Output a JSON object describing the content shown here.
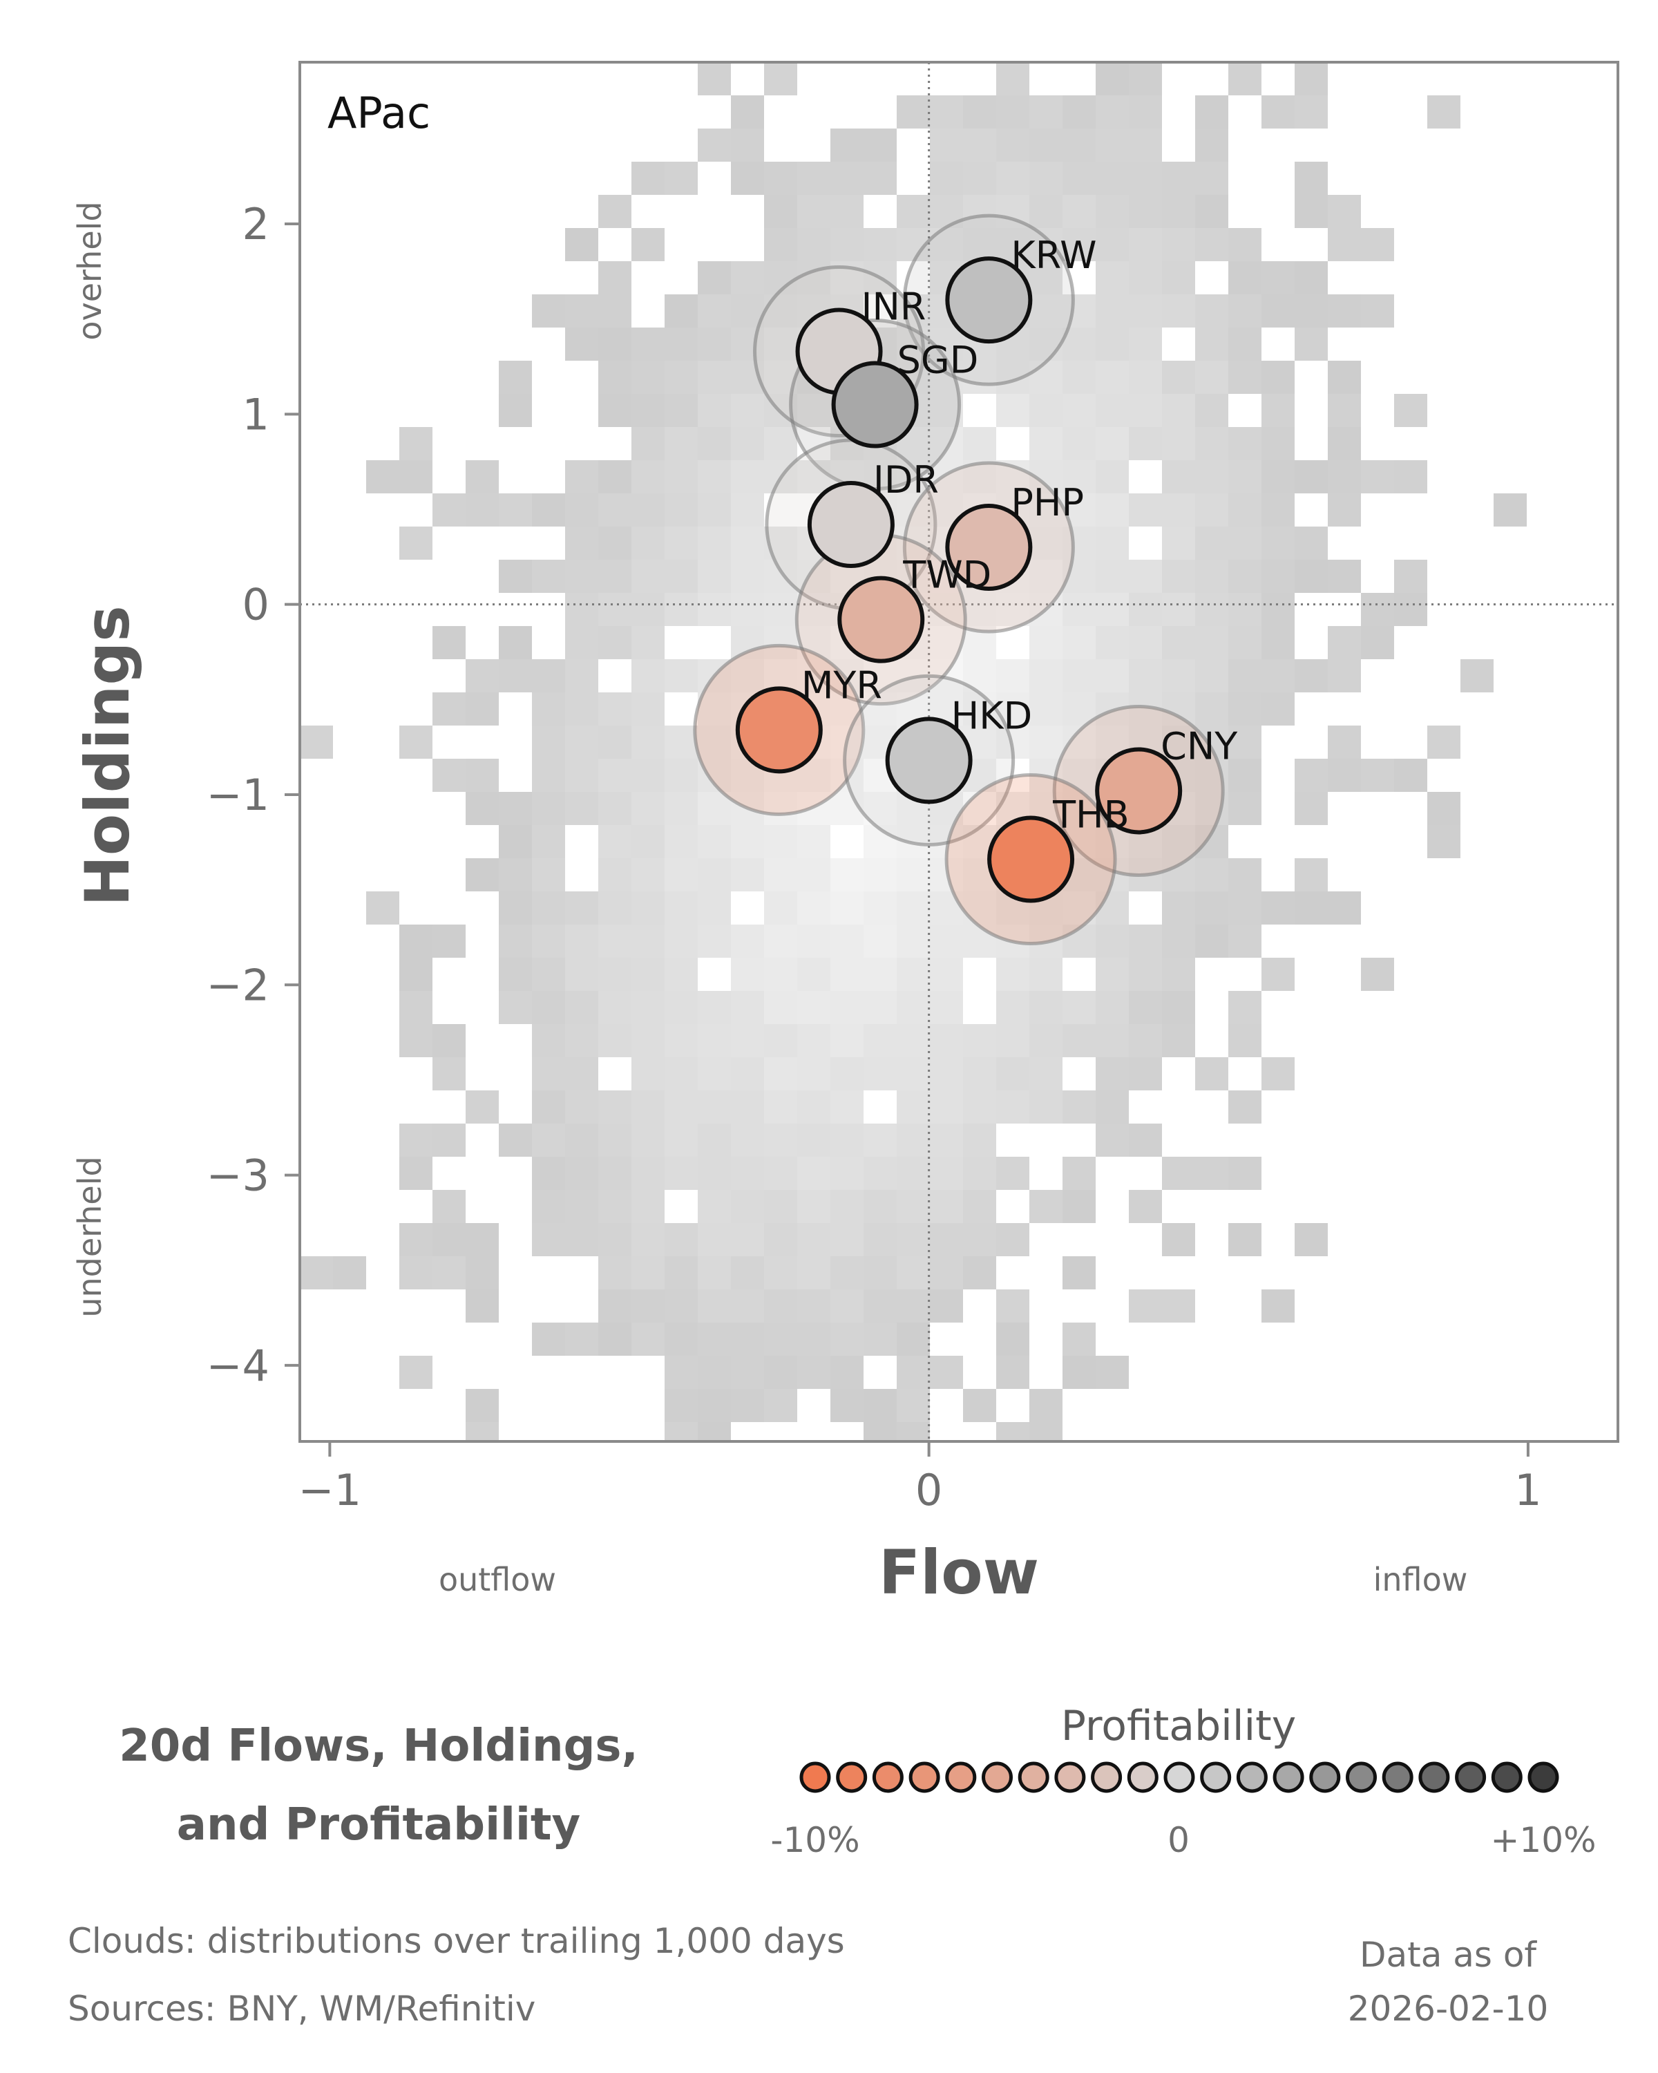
{
  "chart_data": {
    "type": "scatter",
    "region": "APac",
    "xlabel": "Flow",
    "ylabel": "Holdings",
    "xlim": [
      -1.05,
      1.15
    ],
    "ylim": [
      -4.4,
      2.85
    ],
    "x_ticks": [
      -1,
      0,
      1
    ],
    "x_tick_labels": [
      "−1",
      "0",
      "1"
    ],
    "y_ticks": [
      2,
      1,
      0,
      -1,
      -2,
      -3,
      -4
    ],
    "y_tick_labels": [
      "2",
      "1",
      "0",
      "−1",
      "−2",
      "−3",
      "−4"
    ],
    "x_zone_labels": {
      "low": "outflow",
      "high": "inflow"
    },
    "y_zone_labels": {
      "high": "overheld",
      "low": "underheld"
    },
    "reference_lines": {
      "x": 0,
      "y": 0
    },
    "points": [
      {
        "label": "KRW",
        "x": 0.1,
        "y": 1.6,
        "profitability": 1.5
      },
      {
        "label": "INR",
        "x": -0.15,
        "y": 1.33,
        "profitability": -0.5
      },
      {
        "label": "SGD",
        "x": -0.09,
        "y": 1.05,
        "profitability": 3.0
      },
      {
        "label": "IDR",
        "x": -0.13,
        "y": 0.42,
        "profitability": -0.5
      },
      {
        "label": "PHP",
        "x": 0.1,
        "y": 0.3,
        "profitability": -3.0
      },
      {
        "label": "TWD",
        "x": -0.08,
        "y": -0.08,
        "profitability": -4.0
      },
      {
        "label": "MYR",
        "x": -0.25,
        "y": -0.66,
        "profitability": -8.0
      },
      {
        "label": "HKD",
        "x": 0.0,
        "y": -0.82,
        "profitability": 1.0
      },
      {
        "label": "CNY",
        "x": 0.35,
        "y": -0.98,
        "profitability": -5.0
      },
      {
        "label": "THB",
        "x": 0.17,
        "y": -1.34,
        "profitability": -9.0
      }
    ],
    "cloud": "distributions over trailing 1,000 days",
    "legend": {
      "title": "Profitability",
      "range": [
        -10,
        10
      ],
      "tick_labels": [
        "-10%",
        "0",
        "+10%"
      ],
      "colors": {
        "negative": "#f07a50",
        "neutral": "#d6d6d6",
        "positive": "#3c3c3c"
      }
    },
    "grid": false
  },
  "title": [
    "20d Flows, Holdings,",
    "and Profitability"
  ],
  "footer": {
    "clouds": "Clouds:  distributions over trailing 1,000 days",
    "sources": "Sources:  BNY, WM/Refinitiv",
    "asof_label": "Data as of",
    "asof_date": "2026-02-10"
  }
}
